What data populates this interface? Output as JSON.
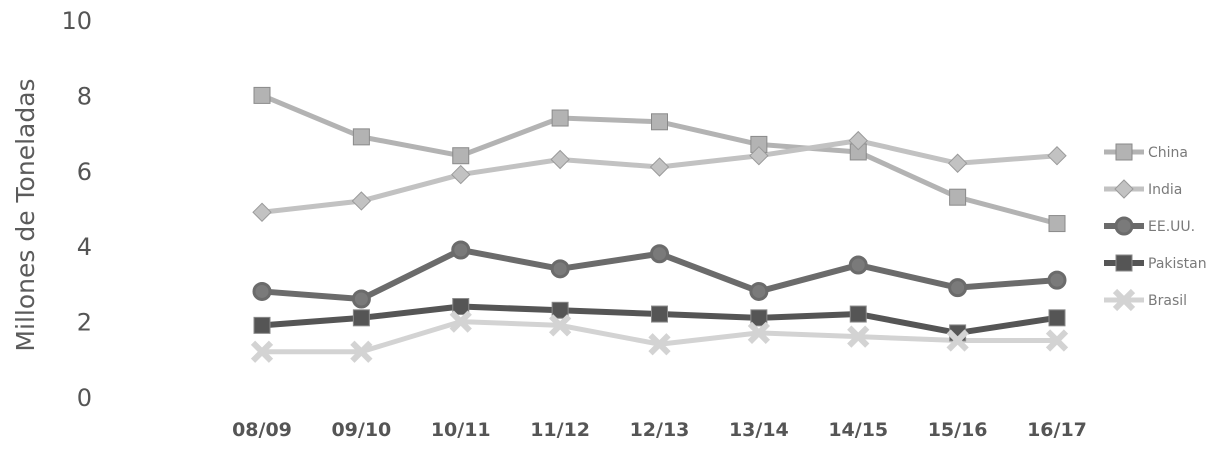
{
  "chart_data": {
    "type": "line",
    "title": "",
    "xlabel": "",
    "ylabel": "Millones de Toneladas",
    "ylim": [
      0,
      10
    ],
    "yticks": [
      0,
      2,
      4,
      6,
      8,
      10
    ],
    "categories": [
      "08/09",
      "09/10",
      "10/11",
      "11/12",
      "12/13",
      "13/14",
      "14/15",
      "15/16",
      "16/17"
    ],
    "grid": false,
    "legend_position": "right",
    "series": [
      {
        "name": "China",
        "values": [
          8.0,
          6.9,
          6.4,
          7.4,
          7.3,
          6.7,
          6.5,
          5.3,
          4.6
        ],
        "color": "#b3b3b3",
        "marker": "square",
        "stroke_width": 5
      },
      {
        "name": "India",
        "values": [
          4.9,
          5.2,
          5.9,
          6.3,
          6.1,
          6.4,
          6.8,
          6.2,
          6.4
        ],
        "color": "#c2c2c2",
        "marker": "diamond",
        "stroke_width": 5
      },
      {
        "name": "EE.UU.",
        "values": [
          2.8,
          2.6,
          3.9,
          3.4,
          3.8,
          2.8,
          3.5,
          2.9,
          3.1
        ],
        "color": "#6b6b6b",
        "marker": "circle",
        "stroke_width": 6
      },
      {
        "name": "Pakistan",
        "values": [
          1.9,
          2.1,
          2.4,
          2.3,
          2.2,
          2.1,
          2.2,
          1.7,
          2.1
        ],
        "color": "#555555",
        "marker": "square",
        "stroke_width": 6
      },
      {
        "name": "Brasil",
        "values": [
          1.2,
          1.2,
          2.0,
          1.9,
          1.4,
          1.7,
          1.6,
          1.5,
          1.5
        ],
        "color": "#d3d3d3",
        "marker": "x",
        "stroke_width": 5
      }
    ]
  }
}
